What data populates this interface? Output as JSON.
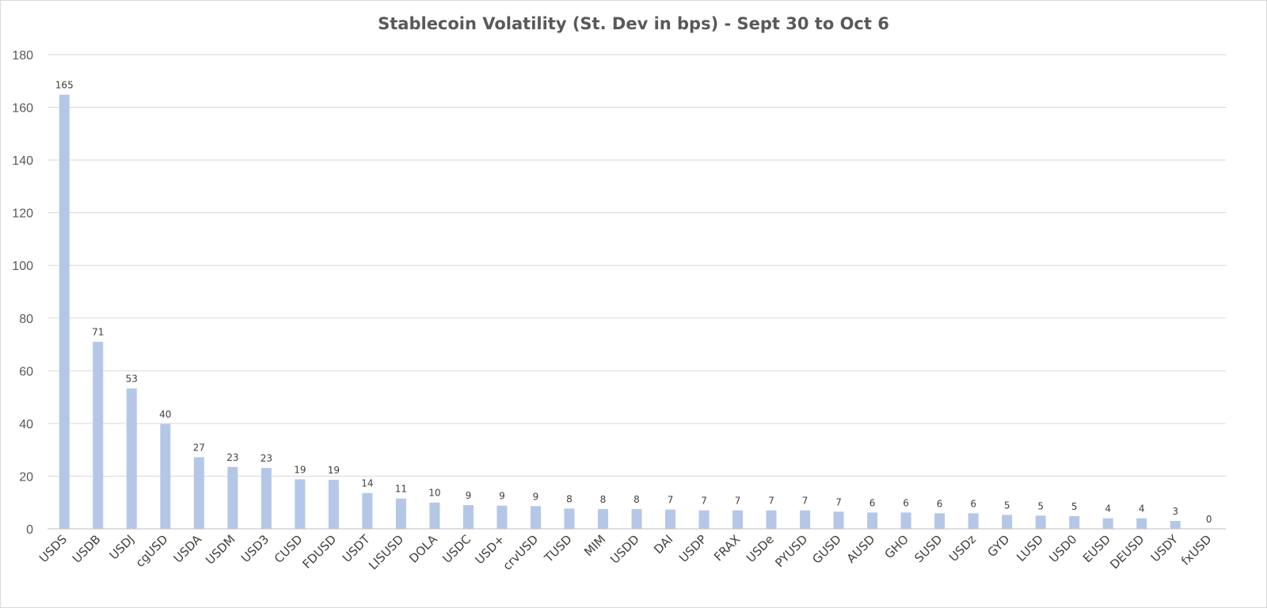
{
  "chart_data": {
    "type": "bar",
    "title": "Stablecoin Volatility (St. Dev in bps) - Sept 30 to Oct 6",
    "xlabel": "",
    "ylabel": "",
    "ylim": [
      0,
      180
    ],
    "yticks": [
      0,
      20,
      40,
      60,
      80,
      100,
      120,
      140,
      160,
      180
    ],
    "grid": true,
    "legend": "none",
    "bar_color": "#b4c7e7",
    "categories": [
      "USDS",
      "USDB",
      "USDJ",
      "cgUSD",
      "USDA",
      "USDM",
      "USD3",
      "CUSD",
      "FDUSD",
      "USDT",
      "LISUSD",
      "DOLA",
      "USDC",
      "USD+",
      "crvUSD",
      "TUSD",
      "MIM",
      "USDD",
      "DAI",
      "USDP",
      "FRAX",
      "USDe",
      "PYUSD",
      "GUSD",
      "AUSD",
      "GHO",
      "SUSD",
      "USDz",
      "GYD",
      "LUSD",
      "USD0",
      "EUSD",
      "DEUSD",
      "USDY",
      "fxUSD"
    ],
    "values": [
      164.8,
      71,
      53.3,
      39.8,
      27.2,
      23.5,
      23.1,
      18.8,
      18.6,
      13.6,
      11.5,
      10,
      9,
      8.8,
      8.6,
      7.7,
      7.5,
      7.5,
      7.3,
      7,
      7,
      7,
      7,
      6.5,
      6.2,
      6.2,
      5.9,
      5.9,
      5.3,
      5,
      4.8,
      4,
      4,
      3,
      0
    ],
    "data_labels": [
      "165",
      "71",
      "53",
      "40",
      "27",
      "23",
      "23",
      "19",
      "19",
      "14",
      "11",
      "10",
      "9",
      "9",
      "9",
      "8",
      "8",
      "8",
      "7",
      "7",
      "7",
      "7",
      "7",
      "7",
      "6",
      "6",
      "6",
      "6",
      "5",
      "5",
      "5",
      "4",
      "4",
      "3",
      "0"
    ]
  }
}
